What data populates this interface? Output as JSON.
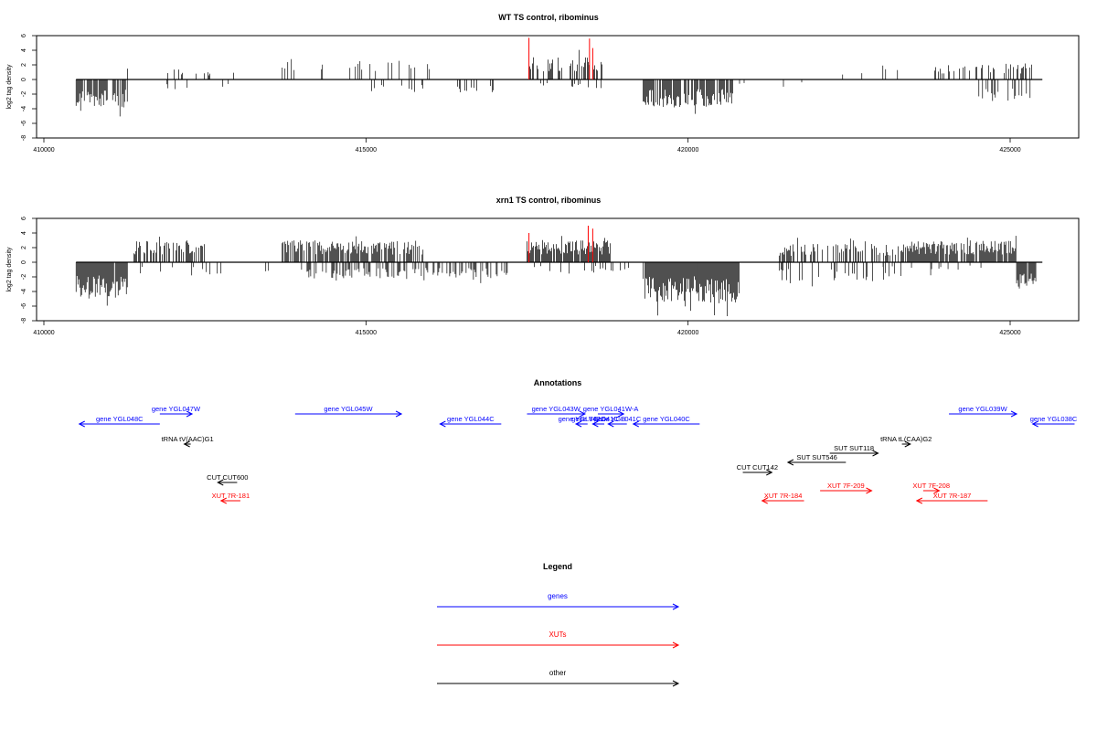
{
  "colors": {
    "genes": "#0000ff",
    "xuts": "#ff0000",
    "other": "#000000",
    "highlight": "#ff0000",
    "bars": "#000000"
  },
  "chart_data": [
    {
      "type": "bar",
      "title": "WT TS control, ribominus",
      "xlabel": "",
      "ylabel": "log2 tag density",
      "xlim": [
        410500,
        425500
      ],
      "ylim": [
        -8,
        6
      ],
      "x_ticks": [
        410000,
        415000,
        420000,
        425000
      ],
      "y_ticks": [
        -8,
        -6,
        -4,
        -2,
        0,
        2,
        4,
        6
      ],
      "grid": false,
      "segments": [
        {
          "from": 410500,
          "to": 411300,
          "dir": -1,
          "amp": 3.8,
          "density": 0.85
        },
        {
          "from": 411300,
          "to": 413000,
          "dir": 1,
          "amp": 1.6,
          "density": 0.12
        },
        {
          "from": 411500,
          "to": 413200,
          "dir": -1,
          "amp": 1.5,
          "density": 0.05
        },
        {
          "from": 413700,
          "to": 416000,
          "dir": 1,
          "amp": 2.8,
          "density": 0.15
        },
        {
          "from": 415000,
          "to": 417000,
          "dir": -1,
          "amp": 1.8,
          "density": 0.12
        },
        {
          "from": 417500,
          "to": 418700,
          "dir": 1,
          "amp": 3.2,
          "density": 0.55
        },
        {
          "from": 417700,
          "to": 418700,
          "dir": -1,
          "amp": 1.2,
          "density": 0.12
        },
        {
          "from": 419300,
          "to": 420700,
          "dir": -1,
          "amp": 3.8,
          "density": 0.8
        },
        {
          "from": 420700,
          "to": 422500,
          "dir": -1,
          "amp": 1.0,
          "density": 0.02
        },
        {
          "from": 422300,
          "to": 423300,
          "dir": 1,
          "amp": 1.6,
          "density": 0.08
        },
        {
          "from": 423800,
          "to": 425400,
          "dir": 1,
          "amp": 2.2,
          "density": 0.35
        },
        {
          "from": 424500,
          "to": 425400,
          "dir": -1,
          "amp": 3.0,
          "density": 0.25
        }
      ],
      "highlight_bars": [
        {
          "x": 417530,
          "y": 5.7
        },
        {
          "x": 418470,
          "y": 5.6
        },
        {
          "x": 418520,
          "y": 4.3
        }
      ]
    },
    {
      "type": "bar",
      "title": "xrn1 TS control, ribominus",
      "xlabel": "",
      "ylabel": "log2 tag density",
      "xlim": [
        410500,
        425500
      ],
      "ylim": [
        -8,
        6
      ],
      "x_ticks": [
        410000,
        415000,
        420000,
        425000
      ],
      "y_ticks": [
        -8,
        -6,
        -4,
        -2,
        0,
        2,
        4,
        6
      ],
      "grid": false,
      "segments": [
        {
          "from": 410500,
          "to": 411300,
          "dir": -1,
          "amp": 5.0,
          "density": 0.95
        },
        {
          "from": 411400,
          "to": 412500,
          "dir": 1,
          "amp": 3.0,
          "density": 0.55
        },
        {
          "from": 411500,
          "to": 413500,
          "dir": -1,
          "amp": 1.8,
          "density": 0.1
        },
        {
          "from": 413700,
          "to": 415900,
          "dir": 1,
          "amp": 3.0,
          "density": 0.75
        },
        {
          "from": 414000,
          "to": 417200,
          "dir": -1,
          "amp": 2.2,
          "density": 0.4
        },
        {
          "from": 417500,
          "to": 418800,
          "dir": 1,
          "amp": 3.0,
          "density": 0.9
        },
        {
          "from": 417600,
          "to": 419100,
          "dir": -1,
          "amp": 1.4,
          "density": 0.2
        },
        {
          "from": 419300,
          "to": 420800,
          "dir": -1,
          "amp": 5.5,
          "density": 0.95
        },
        {
          "from": 421400,
          "to": 423500,
          "dir": 1,
          "amp": 2.5,
          "density": 0.45
        },
        {
          "from": 421400,
          "to": 423400,
          "dir": -1,
          "amp": 2.6,
          "density": 0.25
        },
        {
          "from": 423400,
          "to": 425100,
          "dir": 1,
          "amp": 3.0,
          "density": 0.9
        },
        {
          "from": 423000,
          "to": 424600,
          "dir": -1,
          "amp": 1.3,
          "density": 0.15
        },
        {
          "from": 425100,
          "to": 425400,
          "dir": -1,
          "amp": 4.0,
          "density": 0.9
        }
      ],
      "highlight_bars": [
        {
          "x": 417530,
          "y": 4.0
        },
        {
          "x": 418450,
          "y": 5.0
        },
        {
          "x": 418520,
          "y": 4.6
        }
      ]
    }
  ],
  "annotations": {
    "title": "Annotations",
    "features": [
      {
        "label": "gene YGL048C",
        "start": 410550,
        "end": 411800,
        "strand": "-",
        "cls": "genes",
        "row": 1
      },
      {
        "label": "gene YGL047W",
        "start": 411800,
        "end": 412300,
        "strand": "+",
        "cls": "genes",
        "row": 0
      },
      {
        "label": "gene YGL045W",
        "start": 413900,
        "end": 415550,
        "strand": "+",
        "cls": "genes",
        "row": 0
      },
      {
        "label": "gene YGL044C",
        "start": 416150,
        "end": 417100,
        "strand": "-",
        "cls": "genes",
        "row": 1
      },
      {
        "label": "gene YGL043W",
        "start": 417500,
        "end": 418400,
        "strand": "+",
        "cls": "genes",
        "row": 0
      },
      {
        "label": "gene YGL041W-A",
        "start": 418600,
        "end": 419000,
        "strand": "+",
        "cls": "genes",
        "row": 0
      },
      {
        "label": "gene YGL042C",
        "start": 418260,
        "end": 418440,
        "strand": "-",
        "cls": "genes",
        "row": 1
      },
      {
        "label": "gene YGL041C-B",
        "start": 418520,
        "end": 418700,
        "strand": "-",
        "cls": "genes",
        "row": 1
      },
      {
        "label": "gene YGL041C",
        "start": 418760,
        "end": 419050,
        "strand": "-",
        "cls": "genes",
        "row": 1
      },
      {
        "label": "gene YGL040C",
        "start": 419150,
        "end": 420180,
        "strand": "-",
        "cls": "genes",
        "row": 1
      },
      {
        "label": "gene YGL039W",
        "start": 424050,
        "end": 425100,
        "strand": "+",
        "cls": "genes",
        "row": 0
      },
      {
        "label": "gene YGL038C",
        "start": 425350,
        "end": 426000,
        "strand": "-",
        "cls": "genes",
        "row": 1
      },
      {
        "label": "tRNA tV(AAC)G1",
        "start": 412180,
        "end": 412280,
        "strand": "-",
        "cls": "other",
        "row": 2
      },
      {
        "label": "tRNA tL(CAA)G2",
        "start": 423320,
        "end": 423450,
        "strand": "+",
        "cls": "other",
        "row": 2
      },
      {
        "label": "SUT SUT118",
        "start": 422200,
        "end": 422950,
        "strand": "+",
        "cls": "other",
        "row": 3
      },
      {
        "label": "SUT SUT546",
        "start": 421550,
        "end": 422450,
        "strand": "-",
        "cls": "other",
        "row": 4
      },
      {
        "label": "CUT CUT142",
        "start": 420850,
        "end": 421300,
        "strand": "+",
        "cls": "other",
        "row": 5
      },
      {
        "label": "CUT CUT600",
        "start": 412700,
        "end": 413000,
        "strand": "-",
        "cls": "other",
        "row": 6
      },
      {
        "label": "XUT 7F-209",
        "start": 422050,
        "end": 422850,
        "strand": "+",
        "cls": "xuts",
        "row": 7
      },
      {
        "label": "XUT 7F-208",
        "start": 423650,
        "end": 423900,
        "strand": "+",
        "cls": "xuts",
        "row": 7
      },
      {
        "label": "XUT 7R-184",
        "start": 421150,
        "end": 421800,
        "strand": "-",
        "cls": "xuts",
        "row": 8
      },
      {
        "label": "XUT 7R-187",
        "start": 423550,
        "end": 424650,
        "strand": "-",
        "cls": "xuts",
        "row": 8
      },
      {
        "label": "XUT 7R-181",
        "start": 412750,
        "end": 413050,
        "strand": "-",
        "cls": "xuts",
        "row": 8
      }
    ]
  },
  "legend": {
    "title": "Legend",
    "items": [
      {
        "label": "genes",
        "cls": "genes"
      },
      {
        "label": "XUTs",
        "cls": "xuts"
      },
      {
        "label": "other",
        "cls": "other"
      }
    ]
  }
}
